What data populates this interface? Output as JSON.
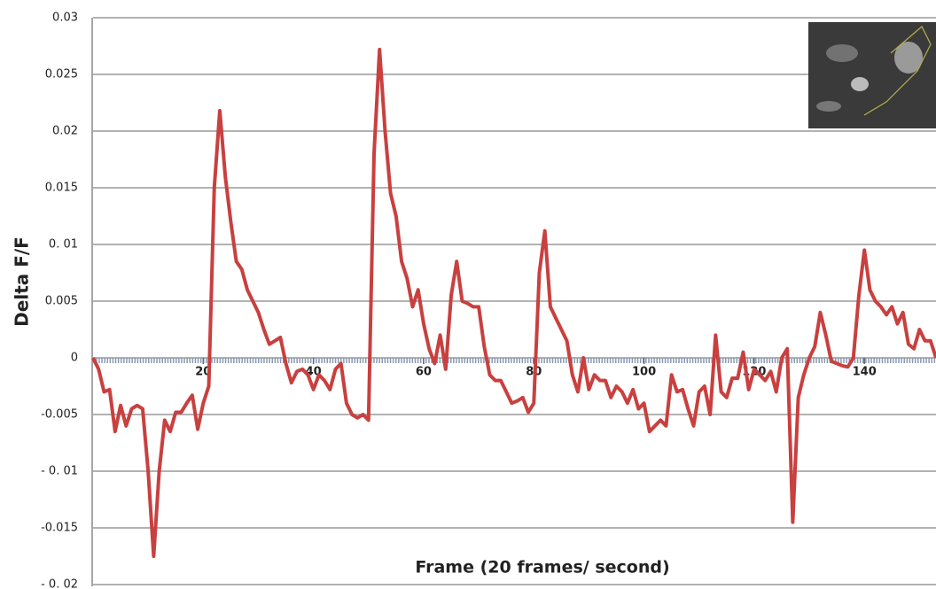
{
  "chart_data": {
    "type": "line",
    "y_label": "Delta F/F",
    "x_label": "Frame (20 frames/ second)",
    "color": "#c8403f",
    "grid": true,
    "xlim": [
      0,
      153
    ],
    "ylim": [
      -0.02,
      0.03
    ],
    "xticks": [
      20,
      40,
      60,
      80,
      100,
      120,
      140
    ],
    "yticks": [
      0.03,
      0.025,
      0.02,
      0.015,
      {
        "value": 0.01,
        "label": "0. 01"
      },
      0.005,
      0,
      -0.005,
      {
        "value": -0.01,
        "label": "- 0. 01"
      },
      -0.015,
      {
        "value": -0.02,
        "label": "- 0. 02"
      }
    ],
    "x": [
      0,
      1,
      2,
      3,
      4,
      5,
      6,
      7,
      8,
      9,
      10,
      11,
      12,
      13,
      14,
      15,
      16,
      17,
      18,
      19,
      20,
      21,
      22,
      23,
      24,
      25,
      26,
      27,
      28,
      29,
      30,
      31,
      32,
      33,
      34,
      35,
      36,
      37,
      38,
      39,
      40,
      41,
      42,
      43,
      44,
      45,
      46,
      47,
      48,
      49,
      50,
      51,
      52,
      53,
      54,
      55,
      56,
      57,
      58,
      59,
      60,
      61,
      62,
      63,
      64,
      65,
      66,
      67,
      68,
      69,
      70,
      71,
      72,
      73,
      74,
      75,
      76,
      77,
      78,
      79,
      80,
      81,
      82,
      83,
      84,
      85,
      86,
      87,
      88,
      89,
      90,
      91,
      92,
      93,
      94,
      95,
      96,
      97,
      98,
      99,
      100,
      101,
      102,
      103,
      104,
      105,
      106,
      107,
      108,
      109,
      110,
      111,
      112,
      113,
      114,
      115,
      116,
      117,
      118,
      119,
      120,
      121,
      122,
      123,
      124,
      125,
      126,
      127,
      128,
      129,
      130,
      131,
      132,
      133,
      134,
      135,
      136,
      137,
      138,
      139,
      140,
      141,
      142,
      143,
      144,
      145,
      146,
      147,
      148,
      149,
      150,
      151,
      152,
      153
    ],
    "values": [
      0,
      -0.001,
      -0.003,
      -0.0028,
      -0.0065,
      -0.0042,
      -0.006,
      -0.0045,
      -0.0042,
      -0.0045,
      -0.01,
      -0.0175,
      -0.01,
      -0.0055,
      -0.0065,
      -0.0048,
      -0.0048,
      -0.004,
      -0.0033,
      -0.0063,
      -0.004,
      -0.0025,
      0.015,
      0.0218,
      0.016,
      0.012,
      0.0085,
      0.0078,
      0.006,
      0.005,
      0.004,
      0.0025,
      0.0012,
      0.0015,
      0.0018,
      -0.0005,
      -0.0022,
      -0.0012,
      -0.001,
      -0.0015,
      -0.0028,
      -0.0015,
      -0.002,
      -0.0028,
      -0.001,
      -0.0005,
      -0.004,
      -0.005,
      -0.0053,
      -0.005,
      -0.0055,
      0.018,
      0.0272,
      0.02,
      0.0145,
      0.0125,
      0.0085,
      0.007,
      0.0045,
      0.006,
      0.003,
      0.0008,
      -0.0005,
      0.002,
      -0.001,
      0.0055,
      0.0085,
      0.005,
      0.0048,
      0.0045,
      0.0045,
      0.001,
      -0.0015,
      -0.002,
      -0.002,
      -0.003,
      -0.004,
      -0.0038,
      -0.0035,
      -0.0048,
      -0.004,
      0.0075,
      0.0112,
      0.0045,
      0.0035,
      0.0025,
      0.0015,
      -0.0015,
      -0.003,
      0,
      -0.0028,
      -0.0015,
      -0.002,
      -0.002,
      -0.0035,
      -0.0025,
      -0.003,
      -0.004,
      -0.0028,
      -0.0045,
      -0.004,
      -0.0065,
      -0.006,
      -0.0055,
      -0.006,
      -0.0015,
      -0.003,
      -0.0028,
      -0.0045,
      -0.006,
      -0.003,
      -0.0025,
      -0.005,
      0.002,
      -0.003,
      -0.0035,
      -0.0018,
      -0.0018,
      0.0005,
      -0.0028,
      -0.001,
      -0.0015,
      -0.002,
      -0.0012,
      -0.003,
      0,
      0.0008,
      -0.0145,
      -0.0035,
      -0.0015,
      0,
      0.001,
      0.004,
      0.002,
      -0.0003,
      -0.0005,
      -0.0007,
      -0.0008,
      0,
      0.0055,
      0.0095,
      0.006,
      0.005,
      0.0045,
      0.0038,
      0.0045,
      0.003,
      0.004,
      0.0012,
      0.0008,
      0.0025,
      0.0015,
      0.0015,
      0
    ]
  }
}
